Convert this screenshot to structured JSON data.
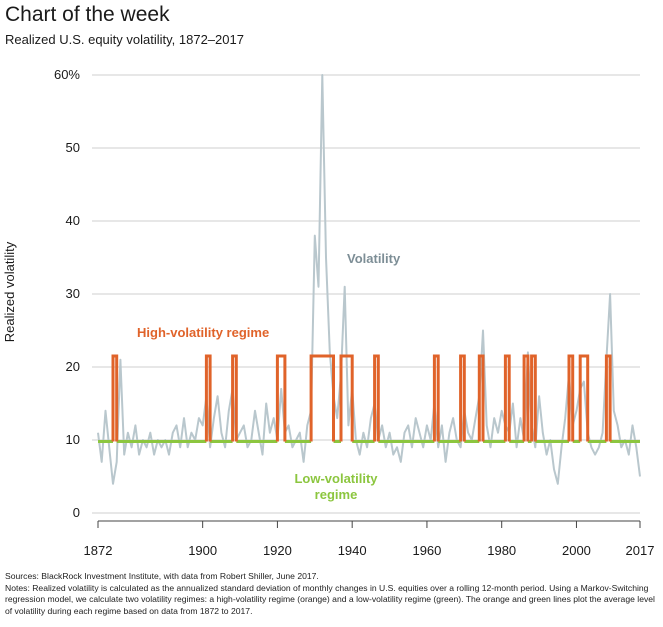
{
  "header": {
    "kicker": "Chart of the week",
    "subtitle": "Realized U.S. equity volatility, 1872–2017"
  },
  "footer": {
    "source": "Sources: BlackRock Investment Institute, with data from Robert Shiller, June 2017.",
    "notes": "Notes: Realized volatility is calculated as the annualized standard deviation of monthly changes in U.S. equities over a rolling 12-month period. Using a Markov-Switching regression model, we calculate two volatility regimes: a high-volatility regime (orange) and a low-volatility regime (green). The orange and green lines plot the average level of volatility during each regime based on data from 1872 to 2017."
  },
  "chart_data": {
    "type": "line",
    "title": "Realized U.S. equity volatility, 1872–2017",
    "ylabel": "Realized volatility",
    "xlabel": "",
    "xlim": [
      1872,
      2017
    ],
    "ylim": [
      0,
      60
    ],
    "x_ticks": [
      1872,
      1900,
      1920,
      1940,
      1960,
      1980,
      2000,
      2017
    ],
    "y_ticks": [
      {
        "value": 0,
        "label": "0"
      },
      {
        "value": 10,
        "label": "10"
      },
      {
        "value": 20,
        "label": "20"
      },
      {
        "value": 30,
        "label": "30"
      },
      {
        "value": 40,
        "label": "40"
      },
      {
        "value": 50,
        "label": "50"
      },
      {
        "value": 60,
        "label": "60%"
      }
    ],
    "grid": "horizontal",
    "colors": {
      "volatility": "#b9c7cd",
      "high": "#e0632a",
      "low": "#8cc63f",
      "grid": "#cfcfcf",
      "axis": "#444444"
    },
    "annotations": {
      "volatility": "Volatility",
      "high": "High-volatility regime",
      "low_line1": "Low-volatility",
      "low_line2": "regime"
    },
    "series": [
      {
        "name": "Volatility",
        "x": [
          1872,
          1873,
          1874,
          1875,
          1876,
          1877,
          1878,
          1879,
          1880,
          1881,
          1882,
          1883,
          1884,
          1885,
          1886,
          1887,
          1888,
          1889,
          1890,
          1891,
          1892,
          1893,
          1894,
          1895,
          1896,
          1897,
          1898,
          1899,
          1900,
          1901,
          1902,
          1903,
          1904,
          1905,
          1906,
          1907,
          1908,
          1909,
          1910,
          1911,
          1912,
          1913,
          1914,
          1915,
          1916,
          1917,
          1918,
          1919,
          1920,
          1921,
          1922,
          1923,
          1924,
          1925,
          1926,
          1927,
          1928,
          1929,
          1930,
          1931,
          1932,
          1933,
          1934,
          1935,
          1936,
          1937,
          1938,
          1939,
          1940,
          1941,
          1942,
          1943,
          1944,
          1945,
          1946,
          1947,
          1948,
          1949,
          1950,
          1951,
          1952,
          1953,
          1954,
          1955,
          1956,
          1957,
          1958,
          1959,
          1960,
          1961,
          1962,
          1963,
          1964,
          1965,
          1966,
          1967,
          1968,
          1969,
          1970,
          1971,
          1972,
          1973,
          1974,
          1975,
          1976,
          1977,
          1978,
          1979,
          1980,
          1981,
          1982,
          1983,
          1984,
          1985,
          1986,
          1987,
          1988,
          1989,
          1990,
          1991,
          1992,
          1993,
          1994,
          1995,
          1996,
          1997,
          1998,
          1999,
          2000,
          2001,
          2002,
          2003,
          2004,
          2005,
          2006,
          2007,
          2008,
          2009,
          2010,
          2011,
          2012,
          2013,
          2014,
          2015,
          2016,
          2017
        ],
        "values": [
          11,
          7,
          14,
          9,
          4,
          7,
          21,
          8,
          11,
          9,
          12,
          8,
          10,
          9,
          11,
          8,
          10,
          9,
          10,
          8,
          11,
          12,
          9,
          13,
          9,
          11,
          10,
          13,
          12,
          16,
          9,
          13,
          16,
          11,
          9,
          14,
          17,
          10,
          11,
          12,
          9,
          10,
          14,
          11,
          8,
          15,
          11,
          13,
          10,
          17,
          11,
          12,
          9,
          10,
          11,
          7,
          12,
          14,
          38,
          31,
          60,
          35,
          22,
          16,
          13,
          19,
          31,
          12,
          17,
          10,
          8,
          11,
          9,
          13,
          15,
          10,
          12,
          9,
          11,
          8,
          9,
          7,
          11,
          12,
          9,
          13,
          11,
          9,
          12,
          10,
          15,
          9,
          12,
          7,
          11,
          13,
          10,
          9,
          14,
          11,
          10,
          13,
          16,
          25,
          12,
          9,
          13,
          11,
          14,
          12,
          11,
          15,
          9,
          13,
          10,
          22,
          12,
          9,
          16,
          11,
          8,
          10,
          6,
          4,
          9,
          13,
          19,
          12,
          14,
          17,
          18,
          11,
          9,
          8,
          9,
          11,
          21,
          30,
          14,
          12,
          9,
          10,
          8,
          12,
          9,
          5
        ],
        "color": "#b9c7cd"
      }
    ],
    "regime_levels": {
      "high": 21.5,
      "low": 9.8
    },
    "high_regime_periods": [
      [
        1876,
        1877
      ],
      [
        1901,
        1902
      ],
      [
        1908,
        1909
      ],
      [
        1920,
        1922
      ],
      [
        1929,
        1935
      ],
      [
        1937,
        1940
      ],
      [
        1946,
        1947
      ],
      [
        1962,
        1963
      ],
      [
        1969,
        1970
      ],
      [
        1974,
        1975
      ],
      [
        1981,
        1982
      ],
      [
        1986,
        1987
      ],
      [
        1988,
        1989
      ],
      [
        1998,
        1999
      ],
      [
        2001,
        2003
      ],
      [
        2008,
        2009
      ]
    ]
  }
}
